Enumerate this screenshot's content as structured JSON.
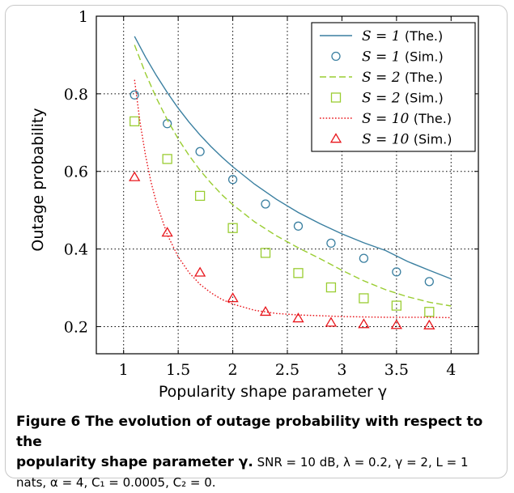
{
  "chart_data": {
    "type": "line",
    "xlabel": "Popularity shape parameter γ",
    "ylabel": "Outage probability",
    "xlim": [
      0.75,
      4.25
    ],
    "ylim": [
      0.13,
      1.0
    ],
    "xticks": [
      "1",
      "1.5",
      "2",
      "2.5",
      "3",
      "3.5",
      "4"
    ],
    "xtick_values": [
      1,
      1.5,
      2,
      2.5,
      3,
      3.5,
      4
    ],
    "yticks": [
      "0.2",
      "0.4",
      "0.6",
      "0.8",
      "1"
    ],
    "ytick_values": [
      0.2,
      0.4,
      0.6,
      0.8,
      1.0
    ],
    "grid": true,
    "legend_position": "top-right",
    "series": [
      {
        "name": "S = 1 (The.)",
        "label_math": "S = 1",
        "label_text": "(The.)",
        "kind": "line",
        "style": "solid",
        "color": "#3a7fa0",
        "x": [
          1.1,
          1.2,
          1.3,
          1.4,
          1.5,
          1.6,
          1.7,
          1.8,
          1.9,
          2.0,
          2.2,
          2.4,
          2.6,
          2.8,
          3.0,
          3.2,
          3.4,
          3.6,
          3.8,
          4.0
        ],
        "y": [
          0.948,
          0.895,
          0.847,
          0.803,
          0.763,
          0.727,
          0.694,
          0.664,
          0.637,
          0.612,
          0.567,
          0.528,
          0.494,
          0.465,
          0.439,
          0.416,
          0.396,
          0.368,
          0.345,
          0.323
        ]
      },
      {
        "name": "S = 1 (Sim.)",
        "label_math": "S = 1",
        "label_text": "(Sim.)",
        "kind": "markers",
        "marker": "circle",
        "color": "#3a7fa0",
        "x": [
          1.1,
          1.4,
          1.7,
          2.0,
          2.3,
          2.6,
          2.9,
          3.2,
          3.5,
          3.8
        ],
        "y": [
          0.797,
          0.723,
          0.651,
          0.579,
          0.516,
          0.459,
          0.415,
          0.376,
          0.341,
          0.316
        ]
      },
      {
        "name": "S = 2 (The.)",
        "label_math": "S = 2",
        "label_text": "(The.)",
        "kind": "line",
        "style": "dashed",
        "color": "#9acd32",
        "x": [
          1.1,
          1.2,
          1.3,
          1.4,
          1.5,
          1.6,
          1.7,
          1.8,
          1.9,
          2.0,
          2.2,
          2.4,
          2.6,
          2.8,
          3.0,
          3.2,
          3.4,
          3.6,
          3.8,
          4.0
        ],
        "y": [
          0.926,
          0.853,
          0.789,
          0.733,
          0.684,
          0.641,
          0.603,
          0.57,
          0.54,
          0.514,
          0.47,
          0.434,
          0.403,
          0.375,
          0.345,
          0.318,
          0.295,
          0.277,
          0.263,
          0.253
        ]
      },
      {
        "name": "S = 2 (Sim.)",
        "label_math": "S = 2",
        "label_text": "(Sim.)",
        "kind": "markers",
        "marker": "square",
        "color": "#9acd32",
        "x": [
          1.1,
          1.4,
          1.7,
          2.0,
          2.3,
          2.6,
          2.9,
          3.2,
          3.5,
          3.8
        ],
        "y": [
          0.729,
          0.632,
          0.537,
          0.454,
          0.39,
          0.338,
          0.301,
          0.273,
          0.254,
          0.238
        ]
      },
      {
        "name": "S = 10 (The.)",
        "label_math": "S = 10",
        "label_text": "(The.)",
        "kind": "line",
        "style": "dotted",
        "color": "#e8151b",
        "x": [
          1.1,
          1.15,
          1.2,
          1.25,
          1.3,
          1.4,
          1.5,
          1.6,
          1.7,
          1.8,
          1.9,
          2.0,
          2.2,
          2.4,
          2.6,
          2.8,
          3.0,
          3.2,
          3.4,
          3.6,
          3.8,
          4.0
        ],
        "y": [
          0.836,
          0.728,
          0.642,
          0.574,
          0.519,
          0.437,
          0.38,
          0.339,
          0.309,
          0.287,
          0.27,
          0.258,
          0.242,
          0.234,
          0.23,
          0.228,
          0.226,
          0.225,
          0.224,
          0.224,
          0.224,
          0.223
        ]
      },
      {
        "name": "S = 10 (Sim.)",
        "label_math": "S = 10",
        "label_text": "(Sim.)",
        "kind": "markers",
        "marker": "triangle",
        "color": "#e8151b",
        "x": [
          1.1,
          1.4,
          1.7,
          2.0,
          2.3,
          2.6,
          2.9,
          3.2,
          3.5,
          3.8
        ],
        "y": [
          0.585,
          0.442,
          0.339,
          0.273,
          0.238,
          0.221,
          0.21,
          0.206,
          0.204,
          0.203
        ]
      }
    ]
  },
  "caption": {
    "line1_bold": "Figure 6 The evolution of outage probability with respect to the",
    "line2_bold": "popularity shape parameter γ.",
    "line2_plain": " SNR = 10 dB, λ = 0.2, γ = 2, L = 1",
    "line3_plain": "nats, α = 4, C₁ = 0.0005, C₂ = 0."
  }
}
